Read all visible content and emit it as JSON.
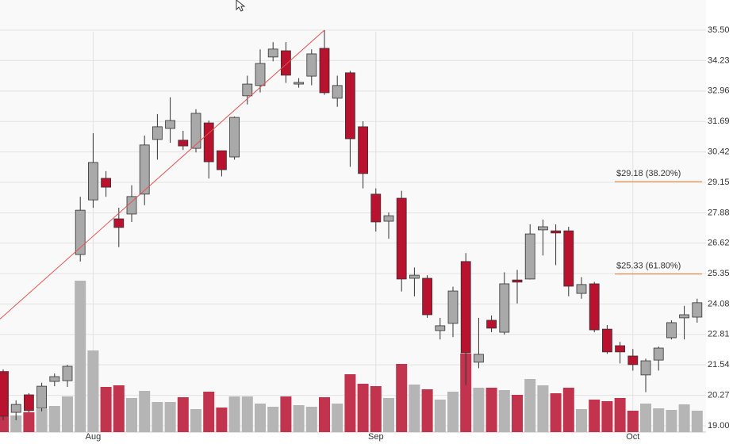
{
  "chart_data": {
    "type": "candlestick",
    "categories": [
      null,
      null,
      null,
      null,
      null,
      null,
      null,
      "Aug",
      null,
      null,
      null,
      null,
      null,
      null,
      null,
      null,
      null,
      null,
      null,
      null,
      null,
      null,
      null,
      null,
      null,
      null,
      null,
      null,
      null,
      "Sep",
      null,
      null,
      null,
      null,
      null,
      null,
      null,
      null,
      null,
      null,
      null,
      null,
      null,
      null,
      null,
      null,
      null,
      null,
      null,
      "Oct",
      null,
      null,
      null,
      null,
      null
    ],
    "open": [
      21.22,
      19.56,
      20.29,
      19.73,
      20.85,
      20.88,
      26.14,
      28.42,
      29.32,
      27.63,
      27.83,
      28.66,
      30.94,
      31.4,
      30.91,
      30.57,
      31.63,
      30.47,
      30.21,
      32.76,
      33.19,
      34.38,
      34.64,
      33.25,
      33.58,
      34.74,
      32.66,
      33.72,
      31.47,
      28.66,
      27.53,
      28.49,
      25.15,
      25.15,
      22.97,
      23.27,
      25.85,
      21.65,
      23.4,
      22.9,
      25.08,
      25.12,
      27.17,
      27.13,
      27.13,
      24.52,
      24.92,
      23.03,
      22.34,
      21.91,
      21.12,
      21.74,
      22.67,
      23.5,
      23.53
    ],
    "high": [
      21.35,
      20.06,
      20.36,
      20.79,
      21.18,
      21.54,
      28.55,
      31.2,
      29.62,
      28.09,
      29.03,
      31.1,
      32.0,
      32.7,
      31.3,
      32.2,
      31.73,
      30.47,
      31.9,
      33.6,
      34.7,
      35.0,
      35.0,
      33.5,
      34.7,
      35.5,
      33.6,
      33.8,
      31.7,
      28.9,
      27.9,
      28.8,
      25.6,
      25.28,
      23.5,
      24.8,
      26.2,
      23.5,
      23.6,
      25.4,
      25.5,
      27.4,
      27.6,
      27.4,
      27.3,
      25.2,
      25.0,
      23.2,
      22.5,
      22.2,
      21.8,
      22.3,
      23.4,
      24.0,
      24.3
    ],
    "low": [
      19.23,
      19.23,
      19.56,
      19.6,
      20.65,
      20.62,
      25.85,
      28.09,
      28.55,
      26.45,
      27.5,
      28.2,
      30.1,
      30.8,
      30.5,
      30.4,
      29.31,
      29.4,
      30.1,
      32.4,
      32.9,
      34.2,
      33.3,
      33.1,
      33.2,
      32.8,
      32.3,
      29.8,
      28.9,
      27.1,
      26.8,
      24.6,
      24.4,
      23.5,
      22.6,
      22.7,
      20.7,
      21.4,
      22.9,
      22.8,
      24.1,
      25.1,
      26.1,
      25.7,
      24.4,
      24.3,
      22.9,
      22.0,
      21.6,
      21.3,
      20.4,
      21.3,
      22.6,
      22.6,
      23.3
    ],
    "close": [
      19.4,
      19.89,
      19.63,
      20.65,
      21.05,
      21.48,
      27.99,
      29.98,
      28.95,
      27.27,
      28.56,
      30.71,
      31.47,
      31.73,
      30.67,
      32.03,
      30.01,
      29.68,
      31.86,
      33.25,
      34.11,
      34.71,
      33.62,
      33.32,
      34.51,
      32.89,
      33.19,
      30.97,
      29.52,
      27.5,
      27.76,
      25.12,
      25.28,
      23.63,
      23.17,
      24.62,
      22.04,
      21.98,
      23.07,
      24.92,
      24.99,
      27.0,
      27.3,
      27.04,
      24.82,
      24.89,
      23.0,
      22.08,
      22.08,
      21.55,
      21.71,
      22.24,
      23.3,
      23.63,
      24.13
    ],
    "volume": [
      77,
      21,
      25,
      29,
      33,
      45,
      191,
      103,
      57,
      59,
      43,
      52,
      38,
      38,
      44,
      29,
      51,
      31,
      45,
      45,
      36,
      32,
      45,
      34,
      32,
      44,
      36,
      73,
      61,
      58,
      43,
      86,
      60,
      54,
      41,
      51,
      99,
      56,
      56,
      53,
      47,
      67,
      59,
      49,
      56,
      29,
      41,
      39,
      43,
      27,
      36,
      30,
      28,
      35,
      27
    ],
    "up_color": "#a9a9a9",
    "down_color": "#b8122f",
    "volume_up_color": "#b5b5b5",
    "volume_down_color": "#c2344e",
    "ylim": [
      19,
      35.5
    ],
    "yticks": [
      {
        "value": 35.5,
        "label": "35.50"
      },
      34.23,
      32.96,
      31.69,
      30.42,
      29.15,
      27.88,
      26.62,
      25.35,
      24.08,
      22.81,
      21.54,
      20.27,
      {
        "value": 19,
        "label": "19.00"
      }
    ],
    "grid": true,
    "annotations": [
      {
        "label": "$29.18 (38.20%)",
        "value": 29.18,
        "color": "#e07a2a"
      },
      {
        "label": "$25.33 (61.80%)",
        "value": 25.33,
        "color": "#e07a2a"
      }
    ],
    "trendline": {
      "x": [
        0,
        25
      ],
      "y": [
        23.33,
        35.5
      ],
      "color": "#e85050"
    }
  }
}
